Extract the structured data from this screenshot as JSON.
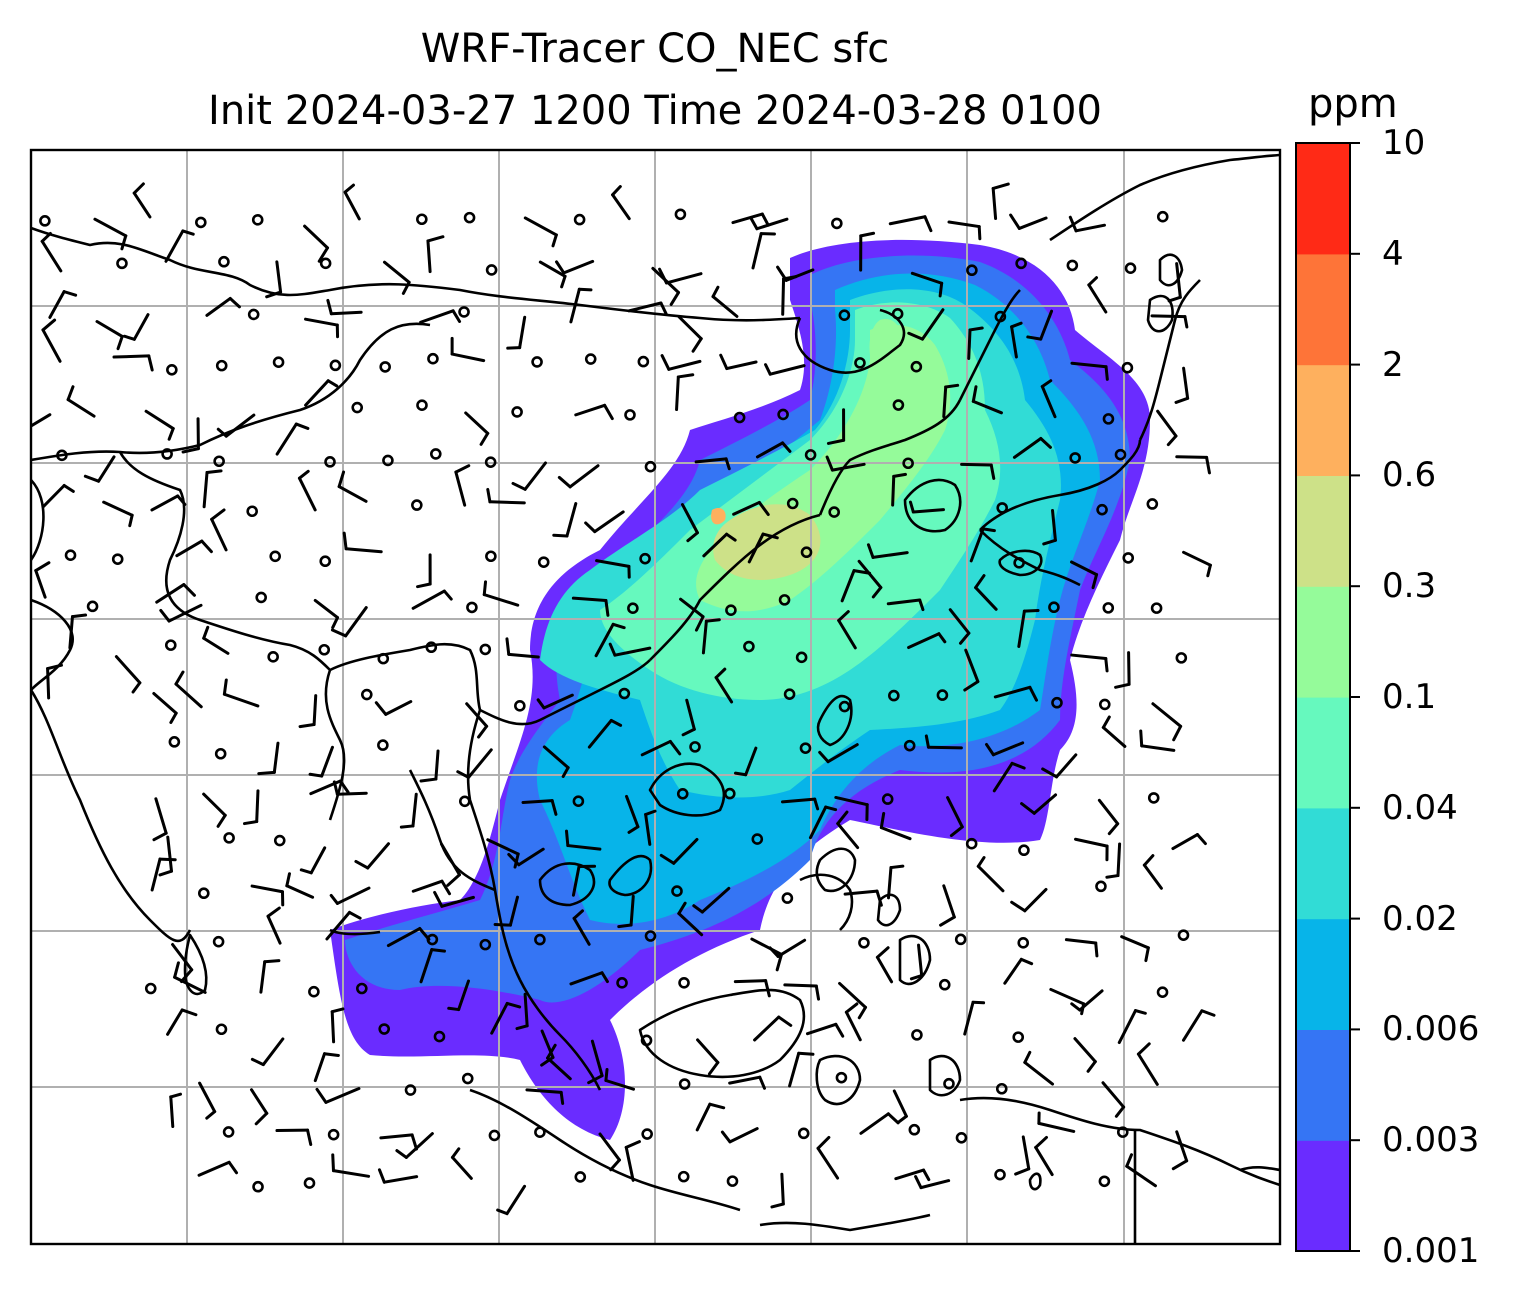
{
  "title": {
    "line1": "WRF-Tracer CO_NEC sfc",
    "line2": "Init 2024-03-27 1200 Time 2024-03-28 0100"
  },
  "colorbar": {
    "unit": "ppm",
    "levels": [
      "0.001",
      "0.003",
      "0.006",
      "0.02",
      "0.04",
      "0.1",
      "0.3",
      "0.6",
      "2",
      "4",
      "10"
    ],
    "colors": [
      "#6a2cff",
      "#3575f4",
      "#07b4e9",
      "#31dcd6",
      "#66f9be",
      "#95fb9a",
      "#cde188",
      "#feb05e",
      "#fe7438",
      "#ff2a16"
    ]
  },
  "map": {
    "projection": "lat-lon",
    "gridlines": true,
    "gridline_color": "#b0b0b0",
    "coastline_color": "#000000",
    "barb_color": "#000000"
  }
}
